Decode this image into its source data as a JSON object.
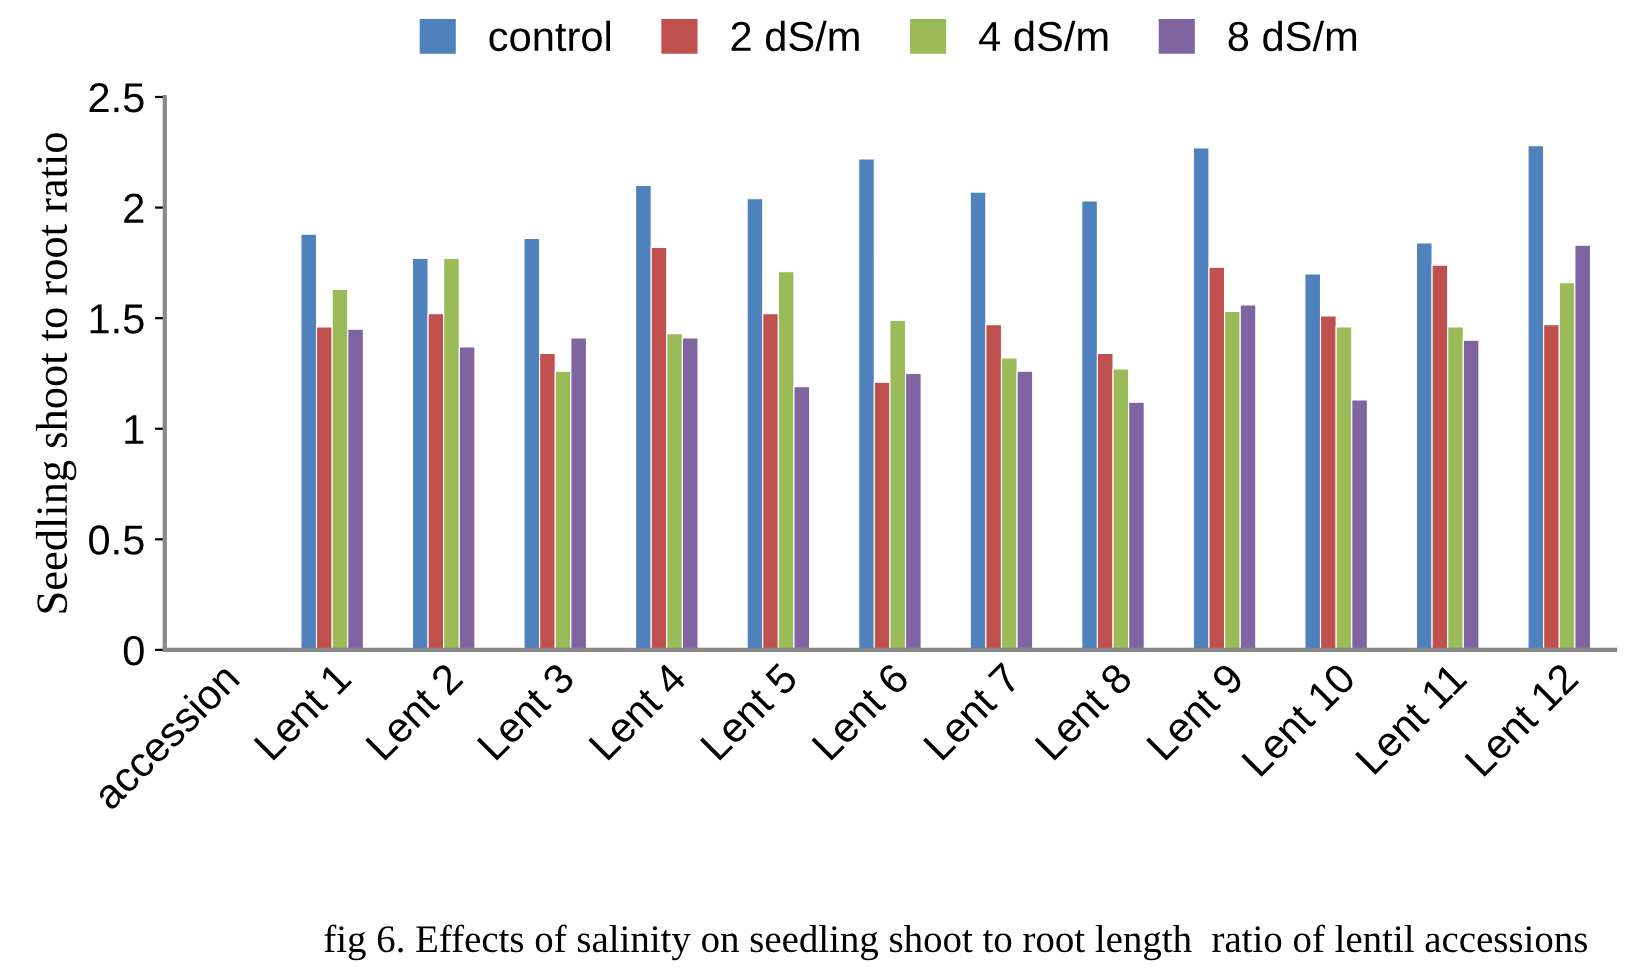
{
  "chart_data": {
    "type": "bar",
    "ylabel": "Seedling shoot to root ratio",
    "categories": [
      "accession",
      "Lent 1",
      "Lent 2",
      "Lent 3",
      "Lent 4",
      "Lent 5",
      "Lent 6",
      "Lent 7",
      "Lent 8",
      "Lent 9",
      "Lent 10",
      "Lent 11",
      "Lent 12"
    ],
    "series": [
      {
        "name": "control",
        "color": "#4f81bd",
        "values": [
          null,
          1.88,
          1.77,
          1.86,
          2.1,
          2.04,
          2.22,
          2.07,
          2.03,
          2.27,
          1.7,
          1.84,
          2.28
        ]
      },
      {
        "name": "2 dS/m",
        "color": "#c0504d",
        "values": [
          null,
          1.46,
          1.52,
          1.34,
          1.82,
          1.52,
          1.21,
          1.47,
          1.34,
          1.73,
          1.51,
          1.74,
          1.47
        ]
      },
      {
        "name": "4 dS/m",
        "color": "#9bbb59",
        "values": [
          null,
          1.63,
          1.77,
          1.26,
          1.43,
          1.71,
          1.49,
          1.32,
          1.27,
          1.53,
          1.46,
          1.46,
          1.66
        ]
      },
      {
        "name": "8 dS/m",
        "color": "#8064a2",
        "values": [
          null,
          1.45,
          1.37,
          1.41,
          1.41,
          1.19,
          1.25,
          1.26,
          1.12,
          1.56,
          1.13,
          1.4,
          1.83
        ]
      }
    ],
    "ylim": [
      0,
      2.5
    ],
    "yticks": [
      0,
      0.5,
      1,
      1.5,
      2,
      2.5
    ],
    "grid": false,
    "legend": "top",
    "annotations": [
      "fig 6. Effects of salinity on seedling shoot to root length  ratio of lentil accessions"
    ]
  }
}
